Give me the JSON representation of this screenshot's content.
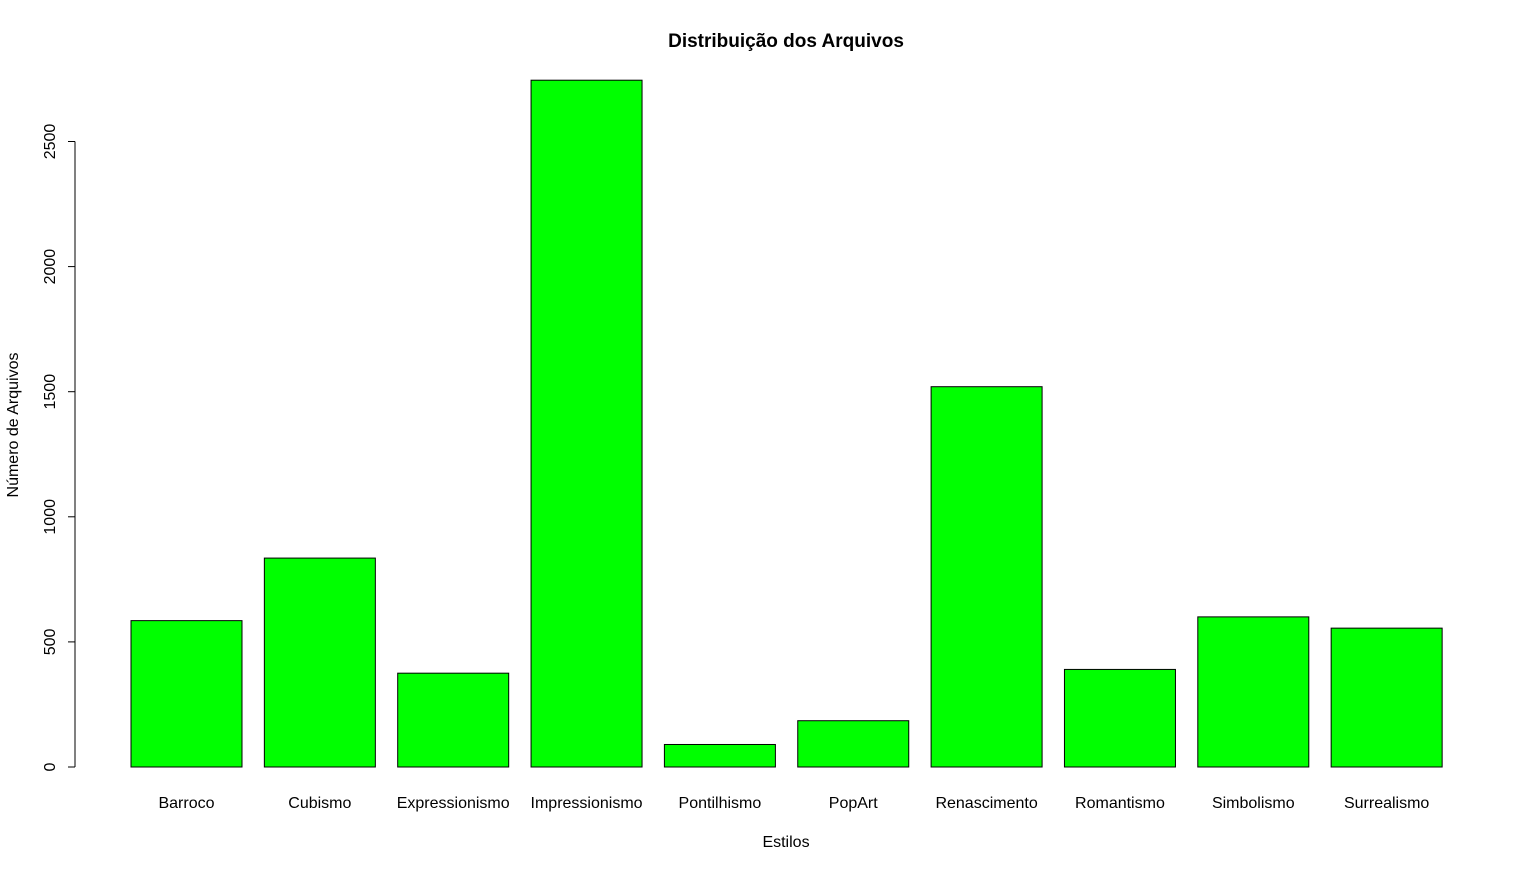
{
  "chart_data": {
    "type": "bar",
    "title": "Distribuição dos Arquivos",
    "xlabel": "Estilos",
    "ylabel": "Número de Arquivos",
    "categories": [
      "Barroco",
      "Cubismo",
      "Expressionismo",
      "Impressionismo",
      "Pontilhismo",
      "PopArt",
      "Renascimento",
      "Romantismo",
      "Simbolismo",
      "Surrealismo"
    ],
    "values": [
      585,
      835,
      375,
      2745,
      90,
      185,
      1520,
      390,
      600,
      555
    ],
    "ylim": [
      0,
      2500
    ],
    "yticks": [
      "0",
      "500",
      "1000",
      "1500",
      "2000",
      "2500"
    ],
    "bar_color": "#00ff00",
    "border_color": "#000000",
    "grid": false,
    "legend": "none"
  }
}
